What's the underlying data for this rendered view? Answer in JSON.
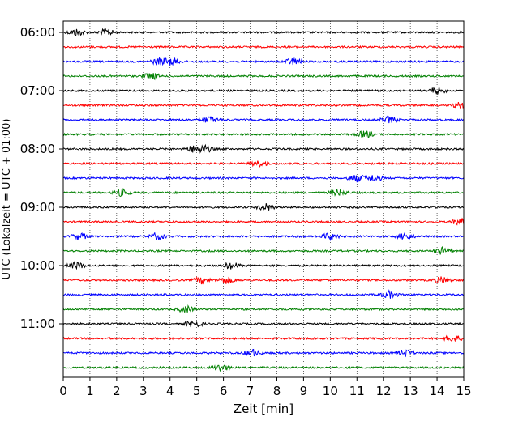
{
  "chart_data": {
    "type": "line",
    "title": "",
    "xlabel": "Zeit  [min]",
    "ylabel": "UTC (Lokalzeit = UTC + 01:00)",
    "xlim": [
      0,
      15
    ],
    "x_ticks": [
      "0",
      "1",
      "2",
      "3",
      "4",
      "5",
      "6",
      "7",
      "8",
      "9",
      "10",
      "11",
      "12",
      "13",
      "14",
      "15"
    ],
    "y_tick_labels": [
      "06:00",
      "07:00",
      "08:00",
      "09:00",
      "10:00",
      "11:00"
    ],
    "grid": "vertical-dotted",
    "trace_colors_cycle": [
      "#000000",
      "#ff0000",
      "#0000ff",
      "#008000"
    ],
    "traces": [
      {
        "start": "06:00",
        "bursts": [
          0.5,
          1.6
        ]
      },
      {
        "start": "06:15",
        "bursts": []
      },
      {
        "start": "06:30",
        "bursts": [
          3.6,
          4.1,
          8.6
        ]
      },
      {
        "start": "06:45",
        "bursts": [
          3.3
        ]
      },
      {
        "start": "07:00",
        "bursts": [
          14.0
        ]
      },
      {
        "start": "07:15",
        "bursts": [
          14.9
        ]
      },
      {
        "start": "07:30",
        "bursts": [
          5.5,
          12.2
        ]
      },
      {
        "start": "07:45",
        "bursts": [
          11.3
        ]
      },
      {
        "start": "08:00",
        "bursts": [
          4.9,
          5.3
        ]
      },
      {
        "start": "08:15",
        "bursts": [
          7.3
        ]
      },
      {
        "start": "08:30",
        "bursts": [
          11.0,
          11.6
        ]
      },
      {
        "start": "08:45",
        "bursts": [
          2.2,
          10.3
        ]
      },
      {
        "start": "09:00",
        "bursts": [
          7.6
        ]
      },
      {
        "start": "09:15",
        "bursts": [
          14.9
        ]
      },
      {
        "start": "09:30",
        "bursts": [
          0.6,
          3.5,
          10.0,
          12.8
        ]
      },
      {
        "start": "09:45",
        "bursts": [
          14.2
        ]
      },
      {
        "start": "10:00",
        "bursts": [
          0.5,
          6.3
        ]
      },
      {
        "start": "10:15",
        "bursts": [
          5.2,
          6.1,
          14.2
        ]
      },
      {
        "start": "10:30",
        "bursts": [
          12.2
        ]
      },
      {
        "start": "10:45",
        "bursts": [
          4.6
        ]
      },
      {
        "start": "11:00",
        "bursts": [
          4.9
        ]
      },
      {
        "start": "11:15",
        "bursts": [
          14.6
        ]
      },
      {
        "start": "11:30",
        "bursts": [
          7.1,
          12.8
        ]
      },
      {
        "start": "11:45",
        "bursts": [
          5.9
        ]
      }
    ]
  }
}
